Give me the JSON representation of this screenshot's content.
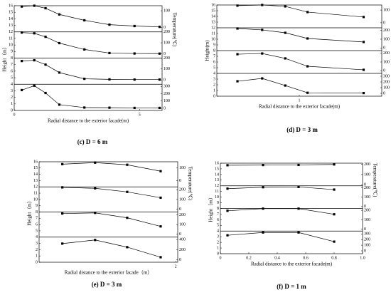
{
  "chart_data": [
    {
      "type": "line",
      "caption": "(c) D = 6 m",
      "xlabel": "Radial distance to the exterior facade(m)",
      "ylabel": "Height（m）",
      "y2label": "Temperature(℃)",
      "x": [
        0.3,
        0.8,
        1.25,
        1.8,
        2.8,
        3.8,
        4.8,
        5.8
      ],
      "xlim": [
        0,
        5.9
      ],
      "xticks": [
        0,
        5
      ],
      "ylim": [
        0,
        16
      ],
      "yticks": [
        0,
        1,
        2,
        3,
        4,
        5,
        6,
        7,
        8,
        9,
        10,
        11,
        12,
        13,
        14,
        15,
        16
      ],
      "panels": [
        {
          "y2lim": [
            -26,
            130
          ],
          "y2ticks": [
            0,
            100
          ],
          "values": [
            125,
            130,
            115,
            78,
            43,
            17,
            9,
            4
          ]
        },
        {
          "y2lim": [
            -40,
            200
          ],
          "y2ticks": [
            0,
            100,
            200
          ],
          "values": [
            194,
            187,
            155,
            97,
            39,
            6,
            2,
            1
          ]
        },
        {
          "y2lim": [
            -40,
            200
          ],
          "y2ticks": [
            0,
            100,
            200
          ],
          "values": [
            173,
            180,
            140,
            67,
            10,
            5,
            3,
            3
          ]
        },
        {
          "y2lim": [
            -30,
            330
          ],
          "y2ticks": [
            0,
            100,
            200,
            300
          ],
          "values": [
            250,
            310,
            210,
            50,
            10,
            8,
            5,
            5
          ]
        }
      ]
    },
    {
      "type": "line",
      "caption": "(d) D = 3 m",
      "xlabel": "Radial distance to the exterior facade(m)",
      "ylabel": "Height(m)",
      "y2label": "Temperature(℃)",
      "x": [
        0.25,
        0.55,
        0.83,
        1.1,
        1.78
      ],
      "xlim": [
        0,
        2
      ],
      "xticks": [
        1
      ],
      "ylim": [
        0,
        16
      ],
      "yticks": [
        0,
        1,
        2,
        3,
        4,
        5,
        6,
        7,
        8,
        9,
        10,
        11,
        12,
        13,
        14,
        15,
        16
      ],
      "panels": [
        {
          "y2lim": [
            -40,
            140
          ],
          "y2ticks": [
            0,
            100
          ],
          "values": [
            135,
            140,
            129,
            84,
            45
          ]
        },
        {
          "y2lim": [
            -30,
            230
          ],
          "y2ticks": [
            0,
            100,
            200
          ],
          "values": [
            222,
            206,
            173,
            108,
            68
          ]
        },
        {
          "y2lim": [
            -30,
            230
          ],
          "y2ticks": [
            0,
            100,
            200
          ],
          "values": [
            189,
            197,
            141,
            51,
            11
          ]
        },
        {
          "y2lim": [
            -50,
            350
          ],
          "y2ticks": [
            0,
            100,
            200,
            300
          ],
          "values": [
            212,
            262,
            137,
            10,
            5
          ]
        }
      ]
    },
    {
      "type": "line",
      "caption": "(e) D = 3 m",
      "xlabel": "Radial distance to the exterior facade（m）",
      "ylabel": "Height（m）",
      "y2label": "Temperature(℃)",
      "x": [
        0.34,
        0.82,
        1.29,
        1.78
      ],
      "xlim": [
        0,
        2.03
      ],
      "xticks": [
        2
      ],
      "ylim": [
        0,
        16
      ],
      "yticks": [
        0,
        1,
        2,
        3,
        4,
        5,
        6,
        7,
        8,
        9,
        10,
        11,
        12,
        13,
        14,
        15,
        16
      ],
      "panels": [
        {
          "y2lim": [
            -50,
            150
          ],
          "y2ticks": [
            0,
            100
          ],
          "values": [
            131,
            143,
            126,
            75
          ]
        },
        {
          "y2lim": [
            -30,
            230
          ],
          "y2ticks": [
            0,
            100,
            200
          ],
          "values": [
            225,
            215,
            178,
            118
          ]
        },
        {
          "y2lim": [
            -30,
            230
          ],
          "y2ticks": [
            0,
            100,
            200
          ],
          "values": [
            214,
            221,
            170,
            81
          ]
        },
        {
          "y2lim": [
            -50,
            450
          ],
          "y2ticks": [
            0,
            200,
            400
          ],
          "values": [
            321,
            393,
            250,
            50
          ]
        }
      ]
    },
    {
      "type": "line",
      "caption": "(f) D = 1 m",
      "xlabel": "Radial distance to the exterior facade(m)",
      "ylabel": "Height（m）",
      "y2label": "Temperature(℃)",
      "x": [
        0.05,
        0.3,
        0.55,
        0.8
      ],
      "xlim": [
        0,
        1
      ],
      "xticks": [
        0,
        0.2,
        0.4,
        0.6,
        0.8,
        {
          "value": 1,
          "label": "1.0"
        }
      ],
      "ylim": [
        0,
        16
      ],
      "yticks": [
        0,
        1,
        2,
        3,
        4,
        5,
        6,
        7,
        8,
        9,
        10,
        11,
        12,
        13,
        14,
        15,
        16
      ],
      "panels": [
        {
          "y2lim": [
            -10,
            210
          ],
          "y2ticks": [
            0,
            100,
            200
          ],
          "values": [
            190,
            192,
            193,
            198
          ]
        },
        {
          "y2lim": [
            -20,
            220
          ],
          "y2ticks": [
            0,
            100,
            200
          ],
          "values": [
            190,
            205,
            208,
            180
          ]
        },
        {
          "y2lim": [
            -20,
            220
          ],
          "y2ticks": [
            0,
            100,
            200
          ],
          "values": [
            195,
            218,
            218,
            158
          ]
        },
        {
          "y2lim": [
            -50,
            350
          ],
          "y2ticks": [
            0,
            100,
            200,
            300
          ],
          "values": [
            275,
            325,
            325,
            163
          ]
        }
      ]
    }
  ]
}
